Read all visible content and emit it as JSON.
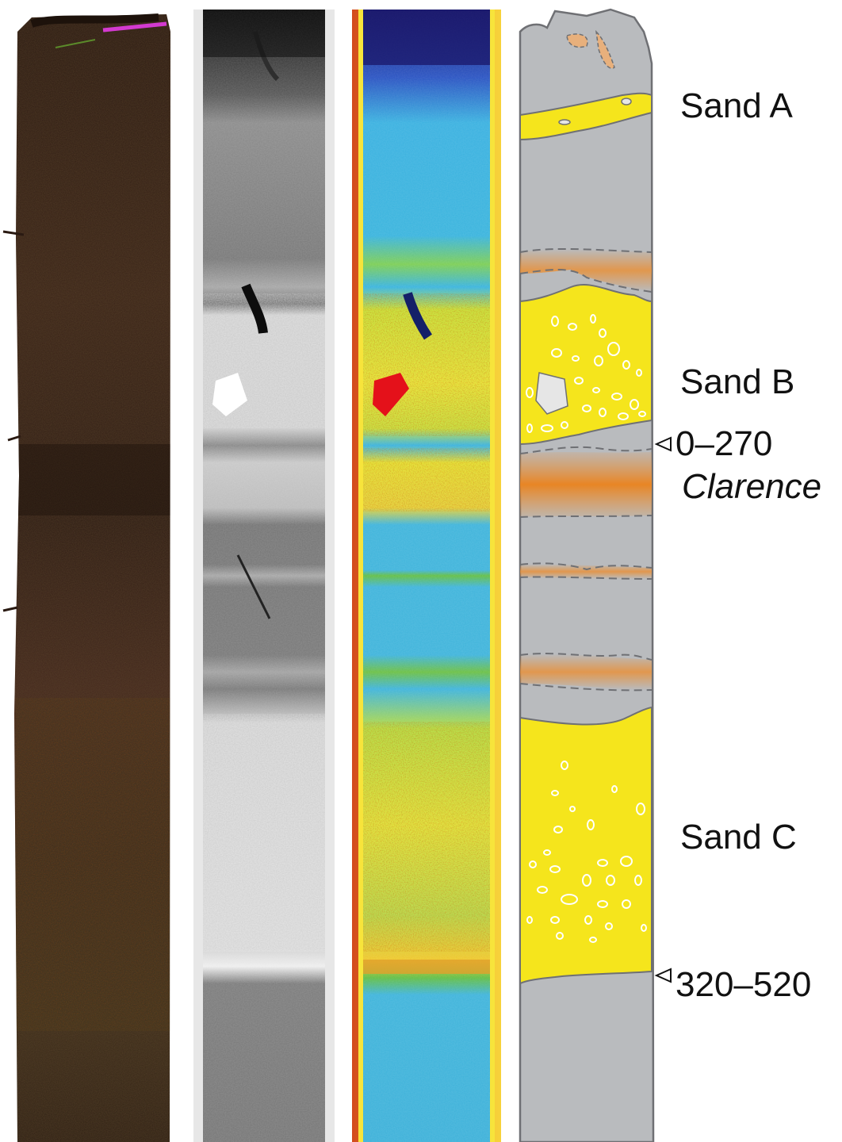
{
  "panels": [
    {
      "name": "core-photo",
      "kind": "photograph"
    },
    {
      "name": "ct-grayscale",
      "kind": "ct-scan"
    },
    {
      "name": "ct-density-colormap",
      "kind": "false-color-scan"
    },
    {
      "name": "stratigraphic-log",
      "kind": "interpretive-drawing"
    }
  ],
  "labels": {
    "sand_a": "Sand A",
    "sand_b": "Sand B",
    "sand_c": "Sand C",
    "age_upper": "0–270",
    "age_upper_name": "Clarence",
    "age_lower": "320–520"
  },
  "colors": {
    "sand": "#f5e51c",
    "mud": "#b9bbbe",
    "tephra_orange": "#e8913a",
    "outline": "#6f7074",
    "clast": "#e6e6e6"
  }
}
